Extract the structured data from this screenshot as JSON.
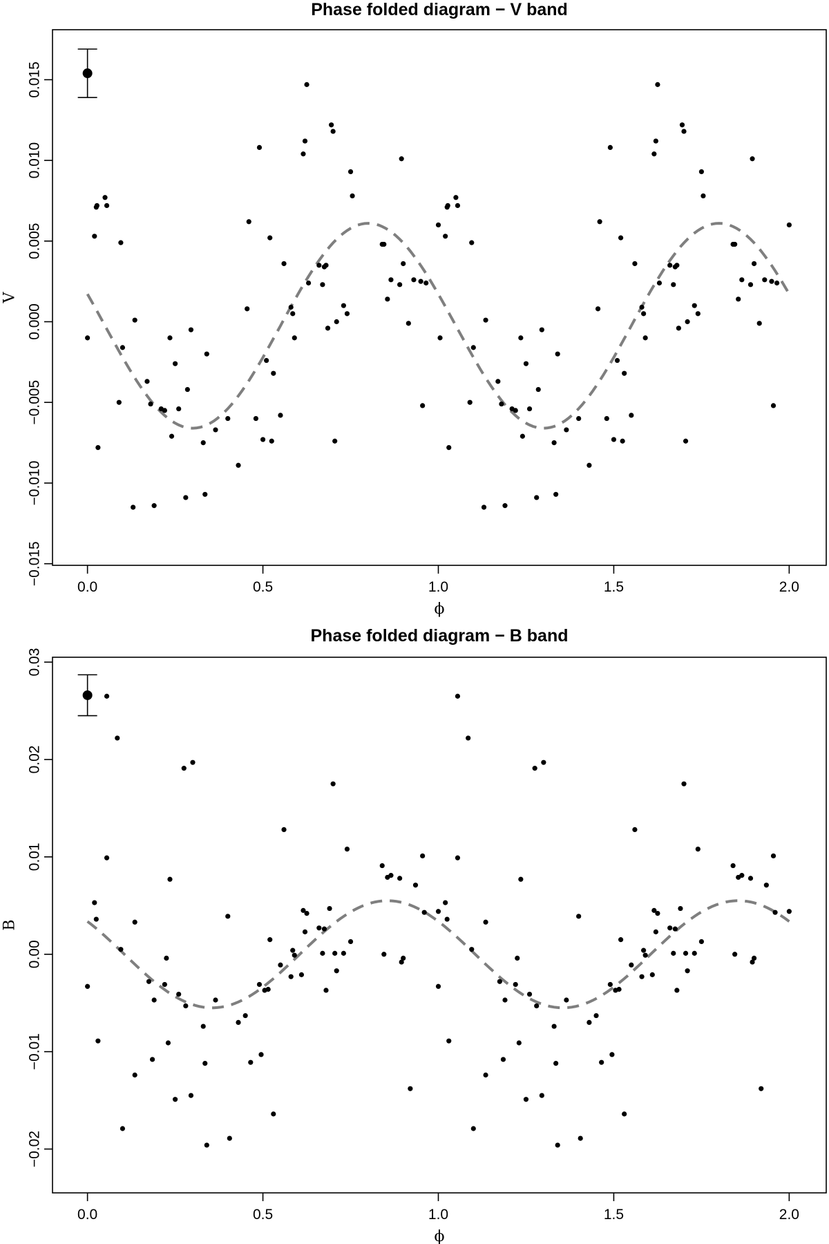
{
  "chart_data": [
    {
      "type": "scatter",
      "title": "Phase folded diagram − V band",
      "xlabel": "ϕ",
      "ylabel": "V",
      "xlim": [
        -0.08,
        2.08
      ],
      "ylim": [
        -0.0151,
        0.0181
      ],
      "x_ticks": [
        0,
        0.5,
        1,
        1.5,
        2
      ],
      "x_tick_labels": [
        "0.0",
        "0.5",
        "1.0",
        "1.5",
        "2.0"
      ],
      "y_ticks": [
        -0.015,
        -0.01,
        -0.005,
        0,
        0.005,
        0.01,
        0.015
      ],
      "y_tick_labels": [
        "−0.015",
        "−0.010",
        "−0.005",
        "0.000",
        "0.005",
        "0.010",
        "0.015"
      ],
      "grid": false,
      "legend": "none",
      "error_bar": {
        "x": 0,
        "y": 0.0154,
        "low": 0.0139,
        "high": 0.0169
      },
      "fit": {
        "style": "dashed",
        "color": "#7f7f7f",
        "offset": -0.00025,
        "amplitude": 0.00635,
        "phase_of_max": 0.8,
        "period": 1
      },
      "point_color": "#000000",
      "x": [
        0,
        0.02,
        0.025,
        0.027,
        0.03,
        0.05,
        0.055,
        0.09,
        0.095,
        0.1,
        0.13,
        0.135,
        0.17,
        0.18,
        0.19,
        0.21,
        0.22,
        0.235,
        0.24,
        0.25,
        0.26,
        0.28,
        0.285,
        0.295,
        0.33,
        0.335,
        0.34,
        0.365,
        0.4,
        0.43,
        0.455,
        0.46,
        0.48,
        0.49,
        0.5,
        0.51,
        0.52,
        0.525,
        0.53,
        0.55,
        0.56,
        0.58,
        0.585,
        0.59,
        0.615,
        0.62,
        0.625,
        0.63,
        0.66,
        0.67,
        0.675,
        0.68,
        0.685,
        0.695,
        0.7,
        0.705,
        0.71,
        0.73,
        0.74,
        0.75,
        0.755,
        0.84,
        0.845,
        0.855,
        0.865,
        0.89,
        0.895,
        0.9,
        0.915,
        0.93,
        0.95,
        0.955,
        0.965,
        1.0,
        1.005,
        1.02,
        1.025,
        1.027,
        1.03,
        1.05,
        1.055,
        1.09,
        1.095,
        1.1,
        1.13,
        1.135,
        1.17,
        1.18,
        1.19,
        1.21,
        1.22,
        1.235,
        1.24,
        1.25,
        1.26,
        1.28,
        1.285,
        1.295,
        1.33,
        1.335,
        1.34,
        1.365,
        1.4,
        1.43,
        1.455,
        1.46,
        1.48,
        1.49,
        1.5,
        1.51,
        1.52,
        1.525,
        1.53,
        1.55,
        1.56,
        1.58,
        1.585,
        1.59,
        1.615,
        1.62,
        1.625,
        1.63,
        1.66,
        1.67,
        1.675,
        1.68,
        1.685,
        1.695,
        1.7,
        1.705,
        1.71,
        1.73,
        1.74,
        1.75,
        1.755,
        1.84,
        1.845,
        1.855,
        1.865,
        1.89,
        1.895,
        1.9,
        1.915,
        1.93,
        1.95,
        1.955,
        1.965,
        2.0
      ],
      "y": [
        -0.001,
        0.0053,
        0.0071,
        0.0072,
        -0.0078,
        0.0077,
        0.0072,
        -0.005,
        0.0049,
        -0.0016,
        -0.0115,
        0.0001,
        -0.0037,
        -0.0051,
        -0.0114,
        -0.0054,
        -0.0055,
        -0.001,
        -0.0071,
        -0.0026,
        -0.0054,
        -0.0109,
        -0.0042,
        -0.0005,
        -0.0075,
        -0.0107,
        -0.002,
        -0.0067,
        -0.006,
        -0.0089,
        0.0008,
        0.0062,
        -0.006,
        0.0108,
        -0.0073,
        -0.0024,
        0.0052,
        -0.0074,
        -0.0032,
        -0.0058,
        0.0036,
        0.0009,
        0.0005,
        -0.001,
        0.0104,
        0.0112,
        0.0147,
        0.0024,
        0.0035,
        0.0023,
        0.0034,
        0.0035,
        -0.0004,
        0.0122,
        0.0118,
        -0.0074,
        0,
        0.001,
        0.0005,
        0.0093,
        0.0078,
        0.0048,
        0.0048,
        0.0014,
        0.0026,
        0.0023,
        0.0101,
        0.0036,
        -0.0001,
        0.0026,
        0.0025,
        -0.0052,
        0.0024,
        0.006,
        -0.001,
        0.0053,
        0.0071,
        0.0072,
        -0.0078,
        0.0077,
        0.0072,
        -0.005,
        0.0049,
        -0.0016,
        -0.0115,
        0.0001,
        -0.0037,
        -0.0051,
        -0.0114,
        -0.0054,
        -0.0055,
        -0.001,
        -0.0071,
        -0.0026,
        -0.0054,
        -0.0109,
        -0.0042,
        -0.0005,
        -0.0075,
        -0.0107,
        -0.002,
        -0.0067,
        -0.006,
        -0.0089,
        0.0008,
        0.0062,
        -0.006,
        0.0108,
        -0.0073,
        -0.0024,
        0.0052,
        -0.0074,
        -0.0032,
        -0.0058,
        0.0036,
        0.0009,
        0.0005,
        -0.001,
        0.0104,
        0.0112,
        0.0147,
        0.0024,
        0.0035,
        0.0023,
        0.0034,
        0.0035,
        -0.0004,
        0.0122,
        0.0118,
        -0.0074,
        0,
        0.001,
        0.0005,
        0.0093,
        0.0078,
        0.0048,
        0.0048,
        0.0014,
        0.0026,
        0.0023,
        0.0101,
        0.0036,
        -0.0001,
        0.0026,
        0.0025,
        -0.0052,
        0.0024,
        0.006
      ]
    },
    {
      "type": "scatter",
      "title": "Phase folded diagram − B band",
      "xlabel": "ϕ",
      "ylabel": "B",
      "xlim": [
        -0.08,
        2.08
      ],
      "ylim": [
        -0.0245,
        0.0305
      ],
      "x_ticks": [
        0,
        0.5,
        1,
        1.5,
        2
      ],
      "x_tick_labels": [
        "0.0",
        "0.5",
        "1.0",
        "1.5",
        "2.0"
      ],
      "y_ticks": [
        -0.02,
        -0.01,
        0,
        0.01,
        0.02,
        0.03
      ],
      "y_tick_labels": [
        "−0.02",
        "−0.01",
        "0.00",
        "0.01",
        "0.02",
        "0.03"
      ],
      "grid": false,
      "legend": "none",
      "error_bar": {
        "x": 0,
        "y": 0.0266,
        "low": 0.0245,
        "high": 0.0287
      },
      "fit": {
        "style": "dashed",
        "color": "#7f7f7f",
        "offset": 0,
        "amplitude": 0.0055,
        "phase_of_max": 0.855,
        "period": 1
      },
      "point_color": "#000000",
      "x": [
        0,
        0.02,
        0.025,
        0.03,
        0.055,
        0.055,
        0.085,
        0.095,
        0.1,
        0.135,
        0.135,
        0.175,
        0.185,
        0.19,
        0.22,
        0.225,
        0.23,
        0.235,
        0.25,
        0.26,
        0.275,
        0.28,
        0.295,
        0.3,
        0.33,
        0.335,
        0.34,
        0.365,
        0.4,
        0.405,
        0.43,
        0.45,
        0.465,
        0.49,
        0.495,
        0.505,
        0.515,
        0.52,
        0.53,
        0.55,
        0.56,
        0.58,
        0.585,
        0.59,
        0.61,
        0.615,
        0.62,
        0.625,
        0.66,
        0.67,
        0.675,
        0.68,
        0.69,
        0.7,
        0.705,
        0.71,
        0.73,
        0.74,
        0.75,
        0.84,
        0.845,
        0.855,
        0.865,
        0.89,
        0.895,
        0.9,
        0.92,
        0.935,
        0.955,
        0.96,
        1.0,
        1.0,
        1.02,
        1.025,
        1.03,
        1.055,
        1.055,
        1.085,
        1.095,
        1.1,
        1.135,
        1.135,
        1.175,
        1.185,
        1.19,
        1.22,
        1.225,
        1.23,
        1.235,
        1.25,
        1.26,
        1.275,
        1.28,
        1.295,
        1.3,
        1.33,
        1.335,
        1.34,
        1.365,
        1.4,
        1.405,
        1.43,
        1.45,
        1.465,
        1.49,
        1.495,
        1.505,
        1.515,
        1.52,
        1.53,
        1.55,
        1.56,
        1.58,
        1.585,
        1.59,
        1.61,
        1.615,
        1.62,
        1.625,
        1.66,
        1.67,
        1.675,
        1.68,
        1.69,
        1.7,
        1.705,
        1.71,
        1.73,
        1.74,
        1.75,
        1.84,
        1.845,
        1.855,
        1.865,
        1.89,
        1.895,
        1.9,
        1.92,
        1.935,
        1.955,
        1.96,
        2.0
      ],
      "y": [
        -0.0033,
        0.0053,
        0.0036,
        -0.0089,
        0.0265,
        0.0099,
        0.0222,
        0.0005,
        -0.0179,
        -0.0124,
        0.0033,
        -0.0028,
        -0.0108,
        -0.0047,
        -0.0031,
        -0.0004,
        -0.0091,
        0.0077,
        -0.0149,
        -0.0041,
        0.0191,
        -0.0053,
        -0.0145,
        0.0197,
        -0.0074,
        -0.0112,
        -0.0196,
        -0.0047,
        0.0039,
        -0.0189,
        -0.007,
        -0.0063,
        -0.0111,
        -0.0031,
        -0.0103,
        -0.0037,
        -0.0036,
        0.0015,
        -0.0164,
        -0.0011,
        0.0128,
        -0.0023,
        0.0004,
        -0.0001,
        -0.0021,
        0.0045,
        0.0023,
        0.0042,
        0.0027,
        0.0001,
        0.0026,
        -0.0037,
        0.0047,
        0.0175,
        0.0001,
        -0.0017,
        0.0001,
        0.0108,
        0.0013,
        0.0091,
        0,
        0.0079,
        0.0081,
        0.0078,
        -0.0008,
        -0.0004,
        -0.0138,
        0.0071,
        0.0101,
        0.0043,
        0.0044,
        -0.0033,
        0.0053,
        0.0036,
        -0.0089,
        0.0265,
        0.0099,
        0.0222,
        0.0005,
        -0.0179,
        -0.0124,
        0.0033,
        -0.0028,
        -0.0108,
        -0.0047,
        -0.0031,
        -0.0004,
        -0.0091,
        0.0077,
        -0.0149,
        -0.0041,
        0.0191,
        -0.0053,
        -0.0145,
        0.0197,
        -0.0074,
        -0.0112,
        -0.0196,
        -0.0047,
        0.0039,
        -0.0189,
        -0.007,
        -0.0063,
        -0.0111,
        -0.0031,
        -0.0103,
        -0.0037,
        -0.0036,
        0.0015,
        -0.0164,
        -0.0011,
        0.0128,
        -0.0023,
        0.0004,
        -0.0001,
        -0.0021,
        0.0045,
        0.0023,
        0.0042,
        0.0027,
        0.0001,
        0.0026,
        -0.0037,
        0.0047,
        0.0175,
        0.0001,
        -0.0017,
        0.0001,
        0.0108,
        0.0013,
        0.0091,
        0,
        0.0079,
        0.0081,
        0.0078,
        -0.0008,
        -0.0004,
        -0.0138,
        0.0071,
        0.0101,
        0.0043,
        0.0044
      ]
    }
  ]
}
